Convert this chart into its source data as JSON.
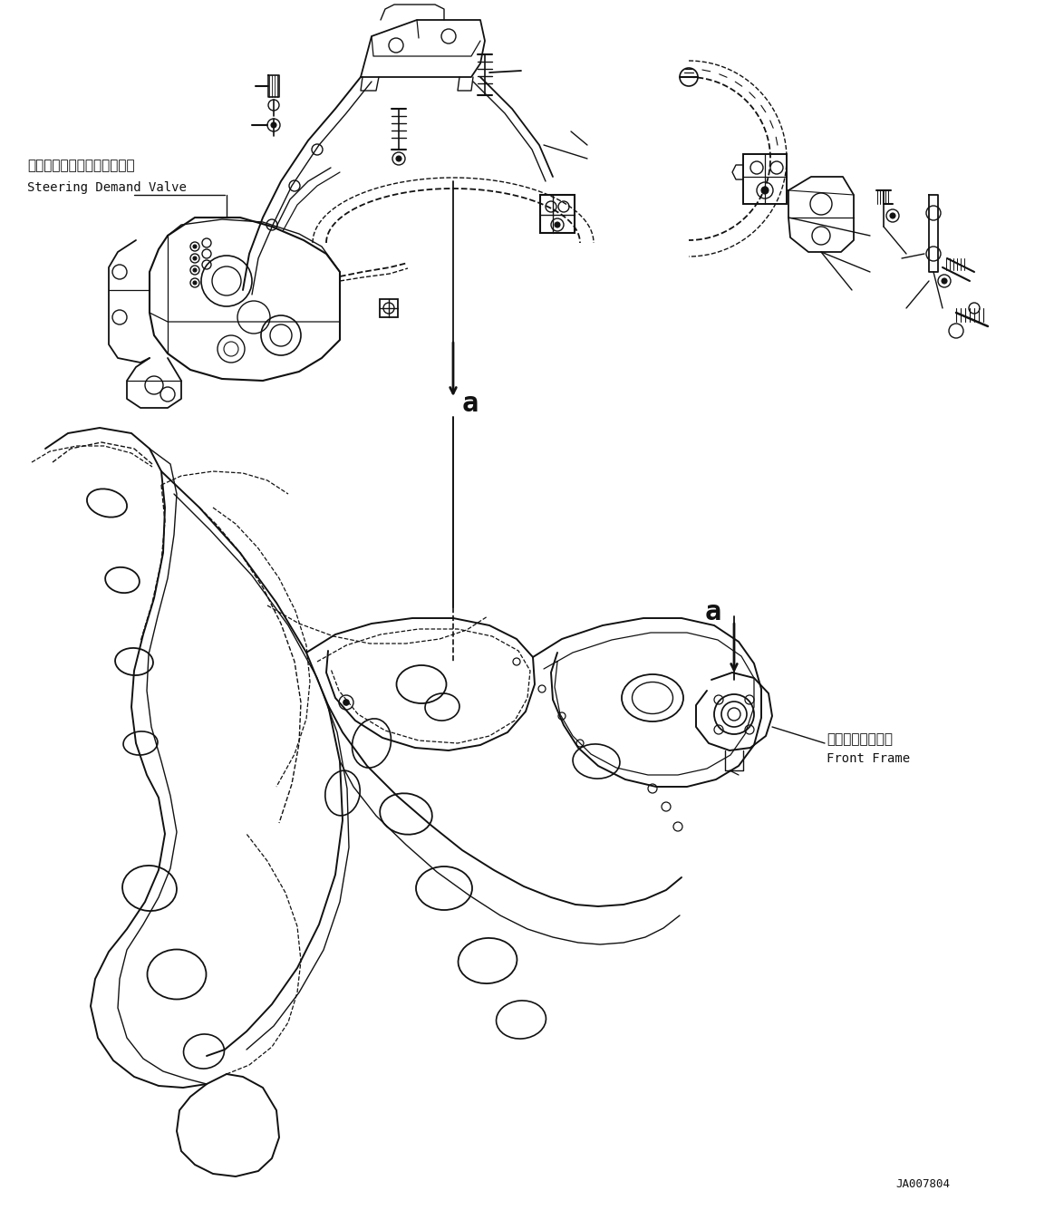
{
  "background_color": "#ffffff",
  "line_color": "#111111",
  "label1_jp": "ステアリングデマンドバルブ",
  "label1_en": "Steering Demand Valve",
  "label2_jp": "フロントフレーム",
  "label2_en": "Front Frame",
  "ref_a": "a",
  "part_number": "JA007804",
  "fig_width": 11.63,
  "fig_height": 13.35,
  "dpi": 100
}
